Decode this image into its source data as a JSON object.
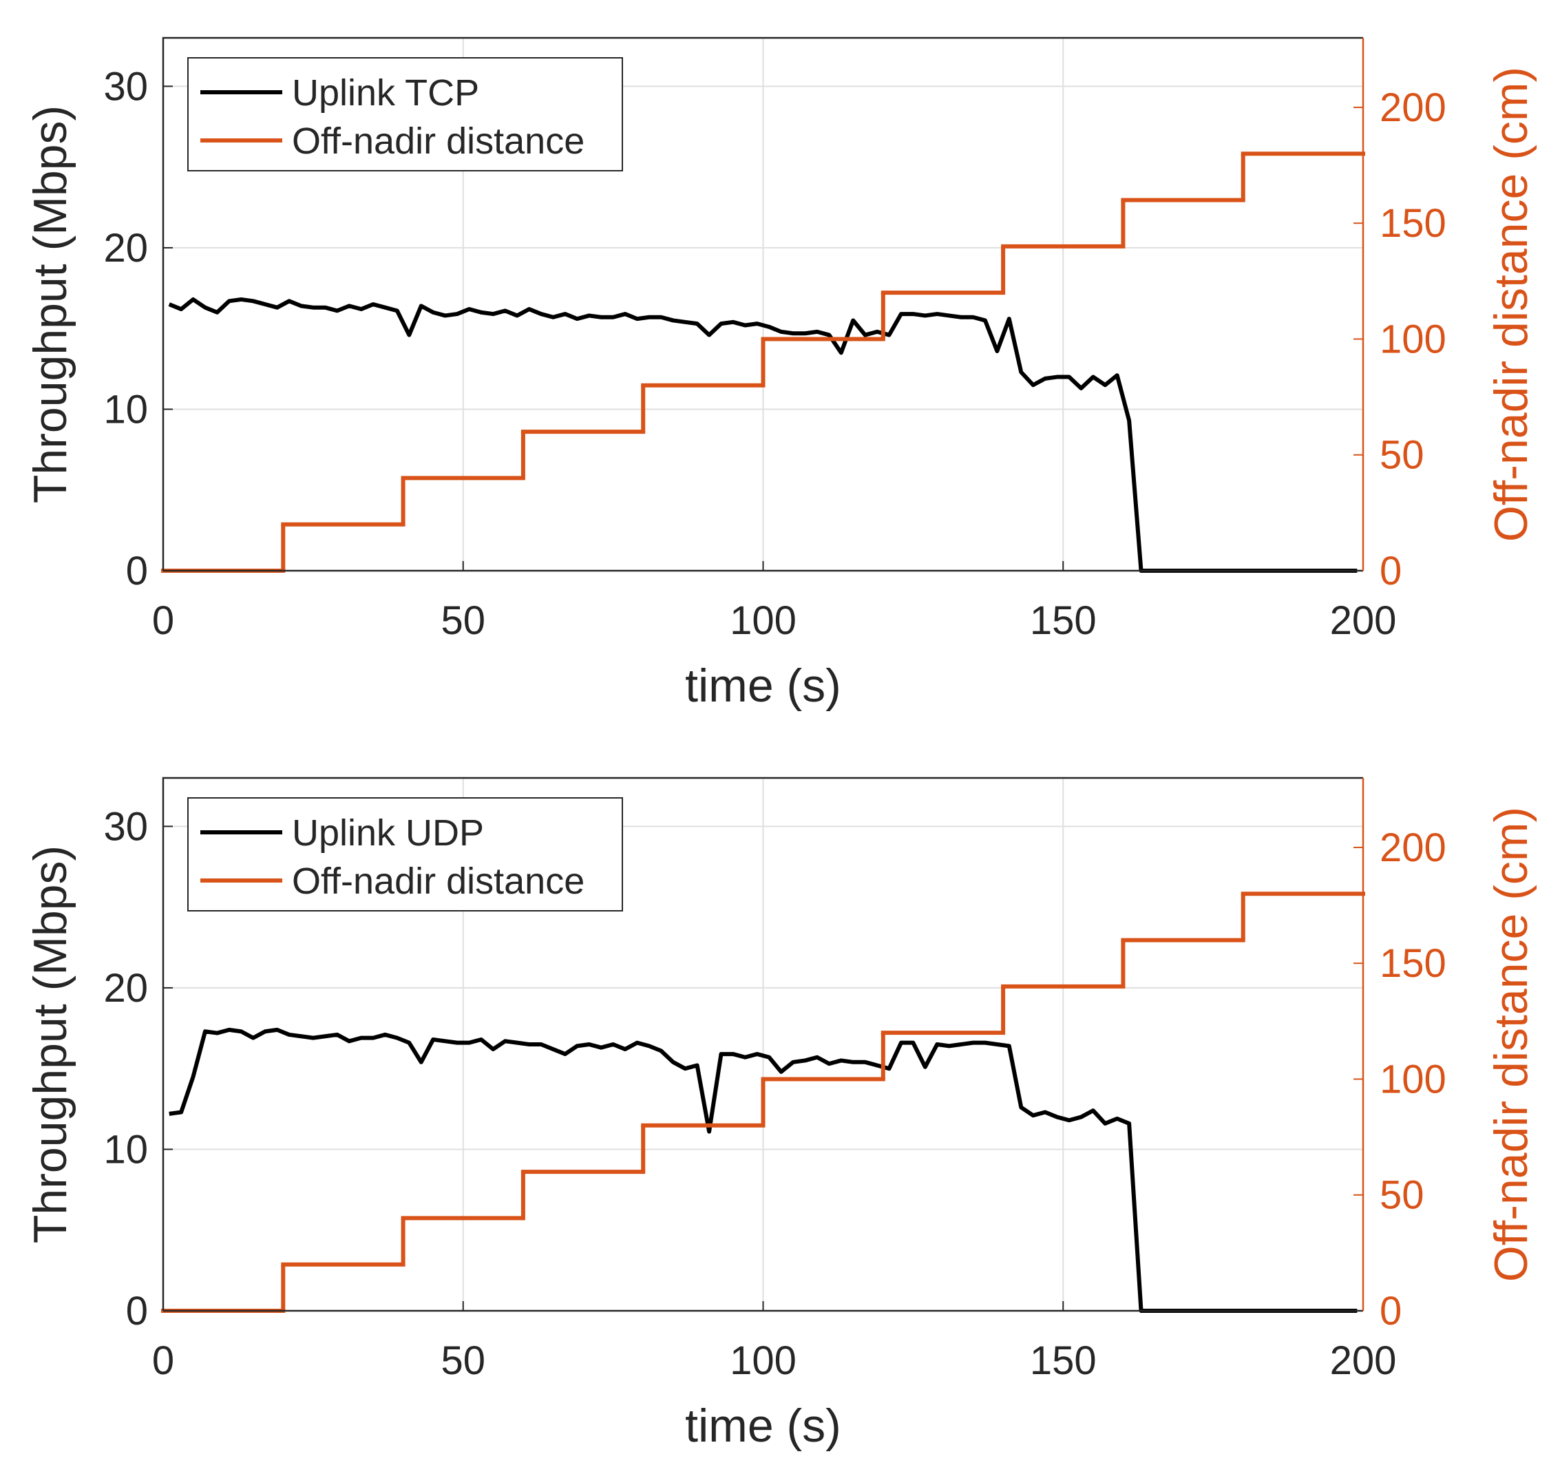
{
  "chart_data": [
    {
      "type": "line",
      "xlabel": "time (s)",
      "ylabel": "Throughput (Mbps)",
      "y2label": "Off-nadir distance (cm)",
      "xlim": [
        0,
        200
      ],
      "xticks": [
        0,
        50,
        100,
        150,
        200
      ],
      "ylim": [
        0,
        33
      ],
      "yticks": [
        0,
        10,
        20,
        30
      ],
      "y2lim": [
        0,
        230
      ],
      "y2ticks": [
        0,
        50,
        100,
        150,
        200
      ],
      "grid": true,
      "legend": "upper left",
      "series": [
        {
          "name": "Uplink TCP",
          "color": "#000000",
          "x": [
            1,
            3,
            5,
            7,
            9,
            11,
            13,
            15,
            17,
            19,
            21,
            23,
            25,
            27,
            29,
            31,
            33,
            35,
            37,
            39,
            41,
            43,
            45,
            47,
            49,
            51,
            53,
            55,
            57,
            59,
            61,
            63,
            65,
            67,
            69,
            71,
            73,
            75,
            77,
            79,
            81,
            83,
            85,
            87,
            89,
            91,
            93,
            95,
            97,
            99,
            101,
            103,
            105,
            107,
            109,
            111,
            113,
            115,
            117,
            119,
            121,
            123,
            125,
            127,
            129,
            131,
            133,
            135,
            137,
            139,
            141,
            143,
            145,
            147,
            149,
            151,
            153,
            155,
            157,
            159,
            161,
            163,
            165,
            167,
            169,
            171,
            173,
            175,
            177,
            179,
            181,
            183,
            185,
            187,
            189,
            191,
            193,
            195,
            197,
            199
          ],
          "values": [
            16.5,
            16.2,
            16.8,
            16.3,
            16.0,
            16.7,
            16.8,
            16.7,
            16.5,
            16.3,
            16.7,
            16.4,
            16.3,
            16.3,
            16.1,
            16.4,
            16.2,
            16.5,
            16.3,
            16.1,
            14.6,
            16.4,
            16.0,
            15.8,
            15.9,
            16.2,
            16.0,
            15.9,
            16.1,
            15.8,
            16.2,
            15.9,
            15.7,
            15.9,
            15.6,
            15.8,
            15.7,
            15.7,
            15.9,
            15.6,
            15.7,
            15.7,
            15.5,
            15.4,
            15.3,
            14.6,
            15.3,
            15.4,
            15.2,
            15.3,
            15.1,
            14.8,
            14.7,
            14.7,
            14.8,
            14.6,
            13.5,
            15.5,
            14.6,
            14.8,
            14.6,
            15.9,
            15.9,
            15.8,
            15.9,
            15.8,
            15.7,
            15.7,
            15.5,
            13.6,
            15.6,
            12.3,
            11.5,
            11.9,
            12.0,
            12.0,
            11.3,
            12.0,
            11.5,
            12.1,
            9.3,
            0,
            0,
            0,
            0,
            0,
            0,
            0,
            0,
            0,
            0,
            0,
            0,
            0,
            0,
            0,
            0,
            0,
            0,
            0
          ]
        },
        {
          "name": "Off-nadir distance",
          "color": "#d95319",
          "axis": "y2",
          "step": "post",
          "x": [
            0,
            20,
            40,
            60,
            80,
            100,
            120,
            140,
            160,
            180
          ],
          "values": [
            0,
            20,
            40,
            60,
            80,
            100,
            120,
            140,
            160,
            180
          ]
        }
      ]
    },
    {
      "type": "line",
      "xlabel": "time (s)",
      "ylabel": "Throughput (Mbps)",
      "y2label": "Off-nadir distance (cm)",
      "xlim": [
        0,
        200
      ],
      "xticks": [
        0,
        50,
        100,
        150,
        200
      ],
      "ylim": [
        0,
        33
      ],
      "yticks": [
        0,
        10,
        20,
        30
      ],
      "y2lim": [
        0,
        230
      ],
      "y2ticks": [
        0,
        50,
        100,
        150,
        200
      ],
      "grid": true,
      "legend": "upper left",
      "series": [
        {
          "name": "Uplink UDP",
          "color": "#000000",
          "x": [
            1,
            3,
            5,
            7,
            9,
            11,
            13,
            15,
            17,
            19,
            21,
            23,
            25,
            27,
            29,
            31,
            33,
            35,
            37,
            39,
            41,
            43,
            45,
            47,
            49,
            51,
            53,
            55,
            57,
            59,
            61,
            63,
            65,
            67,
            69,
            71,
            73,
            75,
            77,
            79,
            81,
            83,
            85,
            87,
            89,
            91,
            93,
            95,
            97,
            99,
            101,
            103,
            105,
            107,
            109,
            111,
            113,
            115,
            117,
            119,
            121,
            123,
            125,
            127,
            129,
            131,
            133,
            135,
            137,
            139,
            141,
            143,
            145,
            147,
            149,
            151,
            153,
            155,
            157,
            159,
            161,
            163,
            165,
            167,
            169,
            171,
            173,
            175,
            177,
            179,
            181,
            183,
            185,
            187,
            189,
            191,
            193,
            195,
            197,
            199
          ],
          "values": [
            12.2,
            12.3,
            14.5,
            17.3,
            17.2,
            17.4,
            17.3,
            16.9,
            17.3,
            17.4,
            17.1,
            17.0,
            16.9,
            17.0,
            17.1,
            16.7,
            16.9,
            16.9,
            17.1,
            16.9,
            16.6,
            15.4,
            16.8,
            16.7,
            16.6,
            16.6,
            16.8,
            16.2,
            16.7,
            16.6,
            16.5,
            16.5,
            16.2,
            15.9,
            16.4,
            16.5,
            16.3,
            16.5,
            16.2,
            16.6,
            16.4,
            16.1,
            15.4,
            15.0,
            15.2,
            11.1,
            15.9,
            15.9,
            15.7,
            15.9,
            15.7,
            14.8,
            15.4,
            15.5,
            15.7,
            15.3,
            15.5,
            15.4,
            15.4,
            15.2,
            15.0,
            16.6,
            16.6,
            15.1,
            16.5,
            16.4,
            16.5,
            16.6,
            16.6,
            16.5,
            16.4,
            12.6,
            12.1,
            12.3,
            12.0,
            11.8,
            12.0,
            12.4,
            11.6,
            11.9,
            11.6,
            0,
            0,
            0,
            0,
            0,
            0,
            0,
            0,
            0,
            0,
            0,
            0,
            0,
            0,
            0,
            0,
            0,
            0,
            0
          ]
        },
        {
          "name": "Off-nadir distance",
          "color": "#d95319",
          "axis": "y2",
          "step": "post",
          "x": [
            0,
            20,
            40,
            60,
            80,
            100,
            120,
            140,
            160,
            180
          ],
          "values": [
            0,
            20,
            40,
            60,
            80,
            100,
            120,
            140,
            160,
            180
          ]
        }
      ]
    }
  ]
}
